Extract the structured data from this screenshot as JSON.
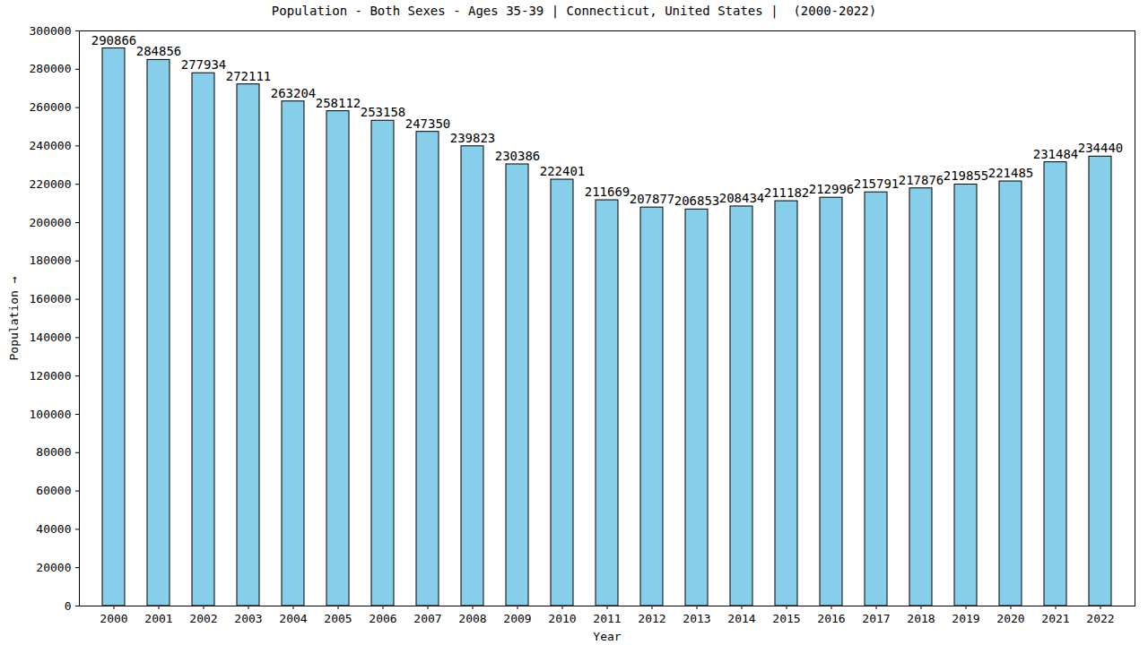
{
  "chart_data": {
    "type": "bar",
    "title": "Population - Both Sexes - Ages 35-39 | Connecticut, United States |  (2000-2022)",
    "x_label": "Year",
    "y_label": "Population",
    "categories": [
      "2000",
      "2001",
      "2002",
      "2003",
      "2004",
      "2005",
      "2006",
      "2007",
      "2008",
      "2009",
      "2010",
      "2011",
      "2012",
      "2013",
      "2014",
      "2015",
      "2016",
      "2017",
      "2018",
      "2019",
      "2020",
      "2021",
      "2022"
    ],
    "values": [
      290866,
      284856,
      277934,
      272111,
      263204,
      258112,
      253158,
      247350,
      239823,
      230386,
      222401,
      211669,
      207877,
      206853,
      208434,
      211182,
      212996,
      215791,
      217876,
      219855,
      221485,
      231484,
      234440
    ],
    "color": "#87ceeb",
    "ylim": [
      0,
      300000
    ],
    "yticks": [
      0,
      20000,
      40000,
      60000,
      80000,
      100000,
      120000,
      140000,
      160000,
      180000,
      200000,
      220000,
      240000,
      260000,
      280000,
      300000
    ],
    "grid": false,
    "data_labels": true
  }
}
